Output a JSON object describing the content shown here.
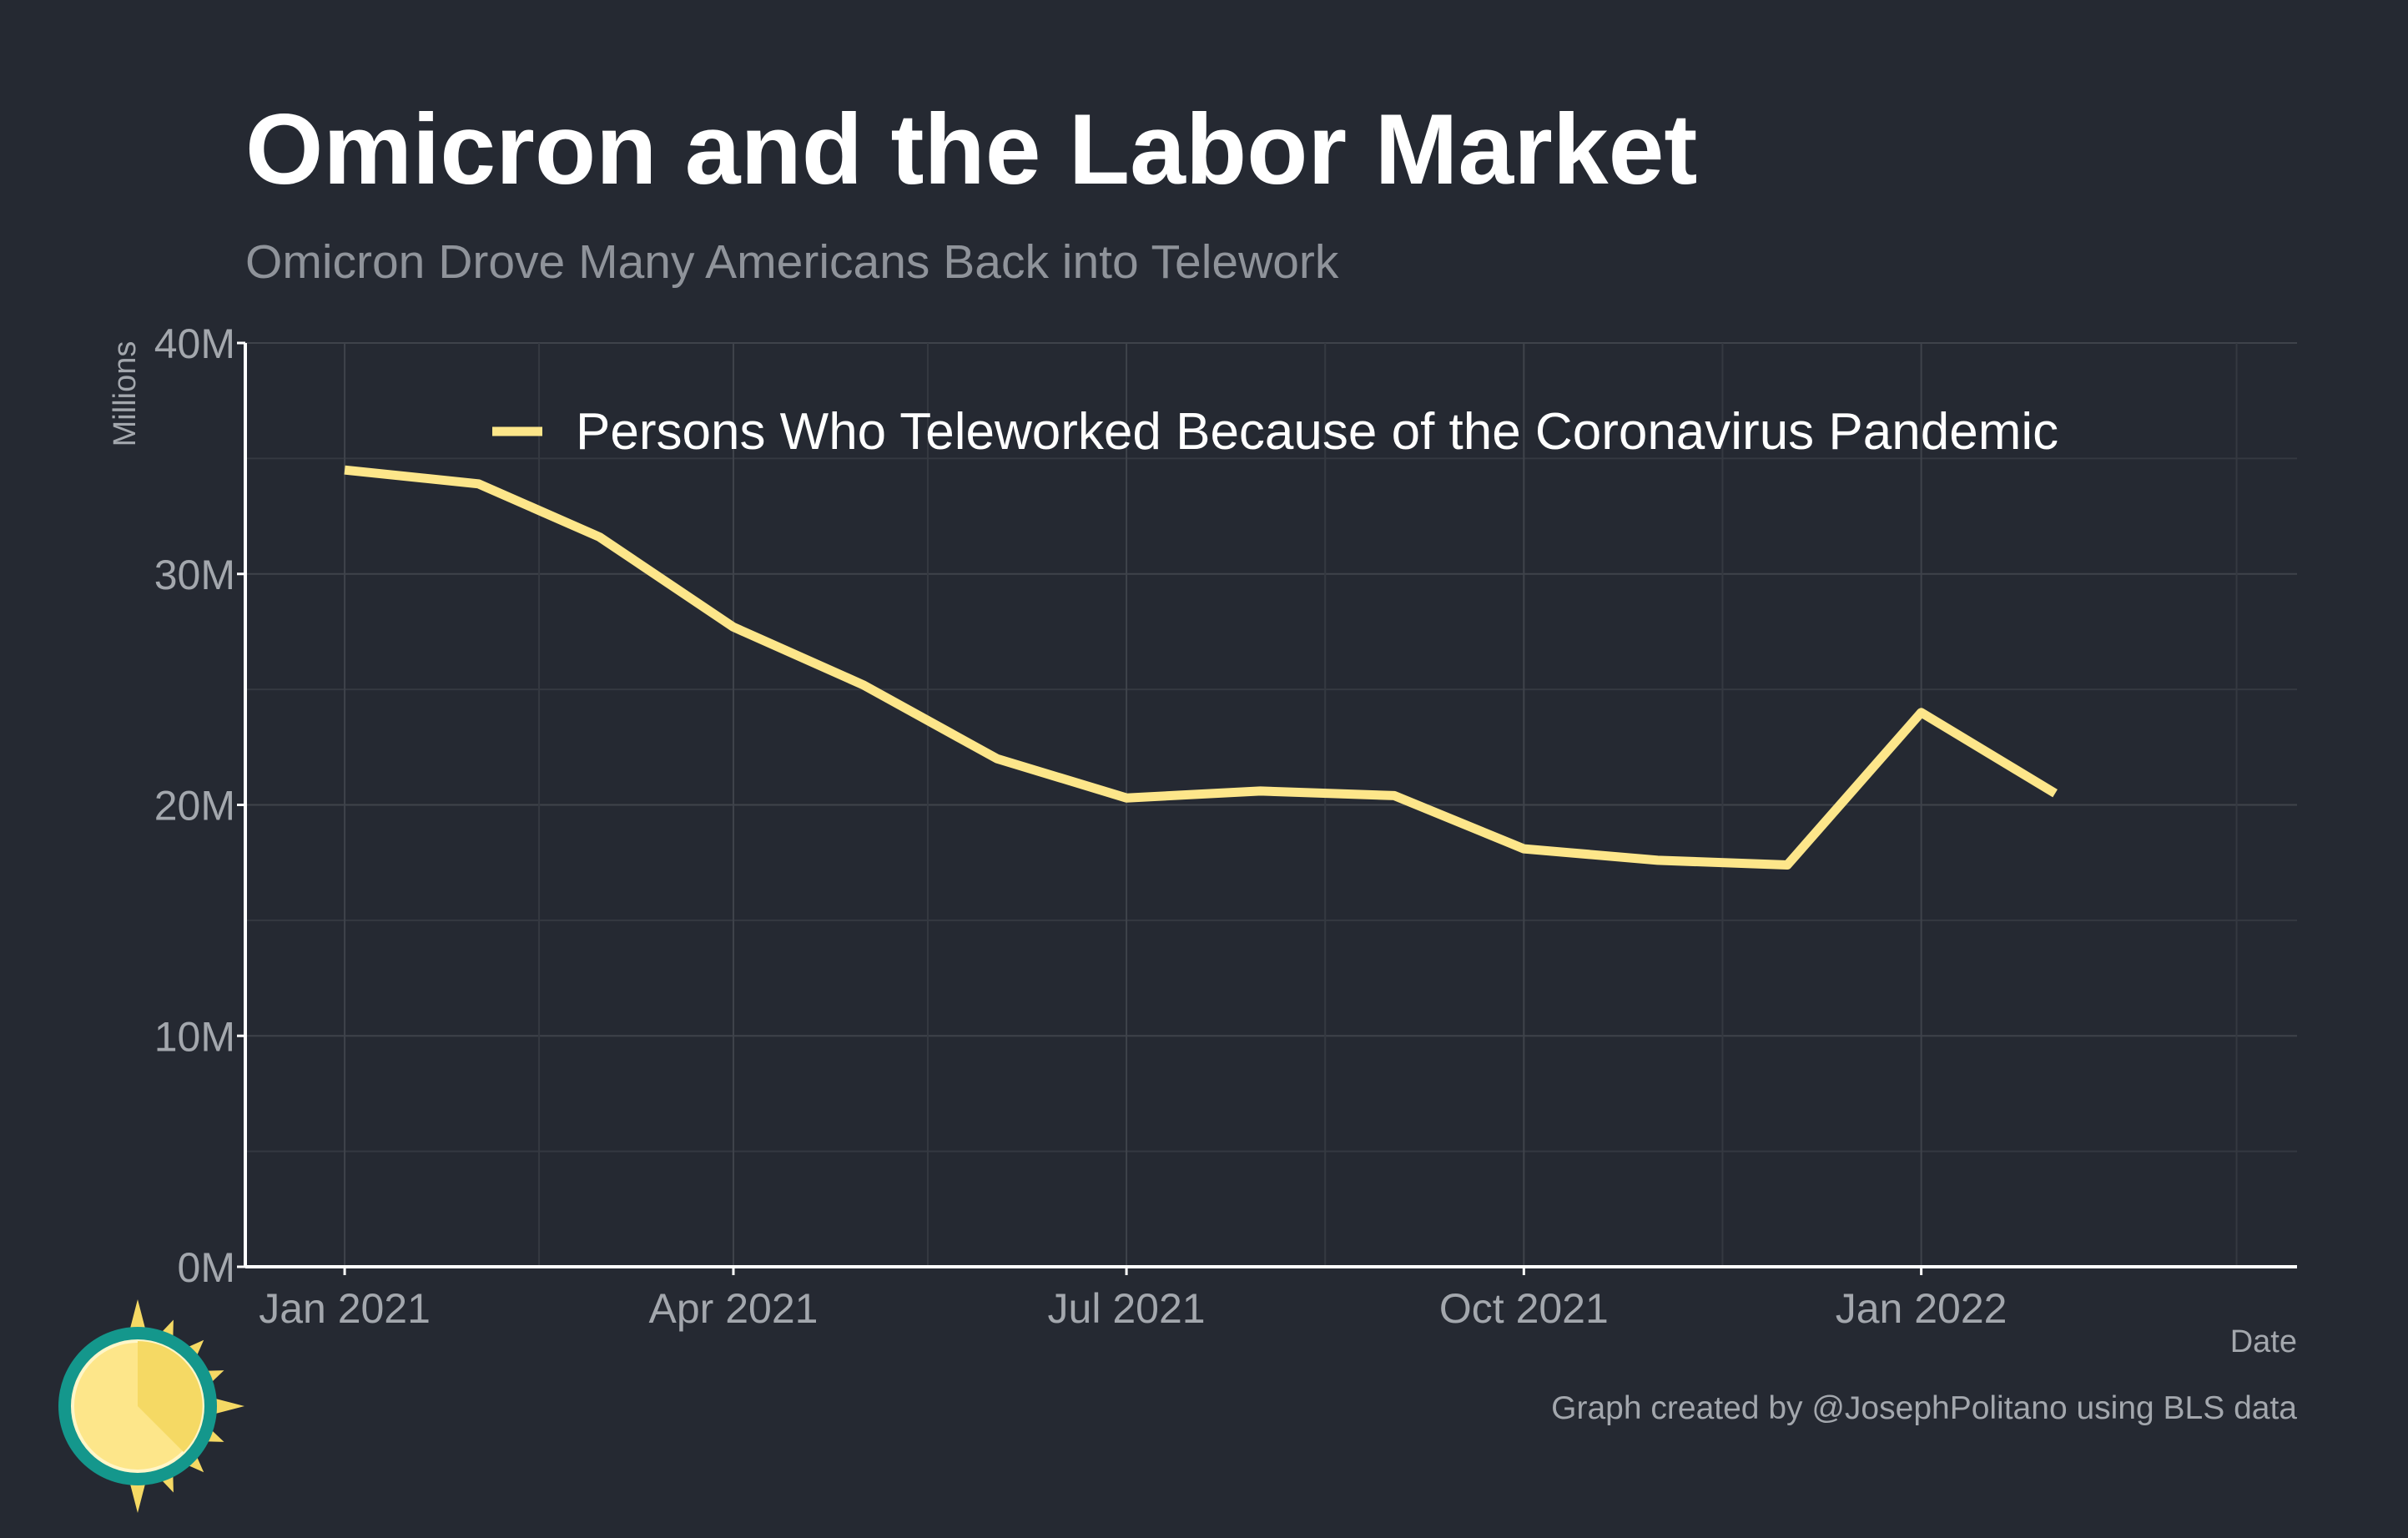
{
  "colors": {
    "background": "#252932",
    "line": "#fde68a",
    "title": "#ffffff",
    "subtitle": "#8f939a",
    "axis_text": "#a3a7ad",
    "logo_ring": "#14978c",
    "logo_sun": "#fde68a",
    "logo_rays": "#f5d964"
  },
  "logo": {
    "icon": "sun-clock-logo-icon"
  },
  "chart_data": {
    "type": "line",
    "title": "Omicron and the Labor Market",
    "subtitle": "Omicron Drove Many Americans Back into Telework",
    "xlabel": "Date",
    "ylabel": "Millions",
    "caption": "Graph created by @JosephPolitano using BLS data",
    "legend_position": "top",
    "grid": true,
    "ylim": [
      0,
      40
    ],
    "yticks": [
      0,
      10,
      20,
      30,
      40
    ],
    "ytick_labels": [
      "0M",
      "10M",
      "20M",
      "30M",
      "40M"
    ],
    "xlim": [
      "2020-12-09",
      "2022-03-29"
    ],
    "xticks": [
      "2021-01-01",
      "2021-04-01",
      "2021-07-01",
      "2021-10-01",
      "2022-01-01"
    ],
    "xtick_labels": [
      "Jan 2021",
      "Apr 2021",
      "Jul 2021",
      "Oct 2021",
      "Jan 2022"
    ],
    "x_minor": [
      "2021-02-15",
      "2021-05-16",
      "2021-08-16",
      "2021-11-16",
      "2022-03-15"
    ],
    "series": [
      {
        "name": "Persons Who Teleworked Because of the Coronavirus Pandemic",
        "x": [
          "2021-01-01",
          "2021-02-01",
          "2021-03-01",
          "2021-04-01",
          "2021-05-01",
          "2021-06-01",
          "2021-07-01",
          "2021-08-01",
          "2021-09-01",
          "2021-10-01",
          "2021-11-01",
          "2021-12-01",
          "2022-01-01",
          "2022-02-01"
        ],
        "values": [
          34.5,
          33.9,
          31.6,
          27.7,
          25.2,
          22.0,
          20.3,
          20.6,
          20.4,
          18.1,
          17.6,
          17.4,
          24.0,
          20.5
        ]
      }
    ]
  }
}
